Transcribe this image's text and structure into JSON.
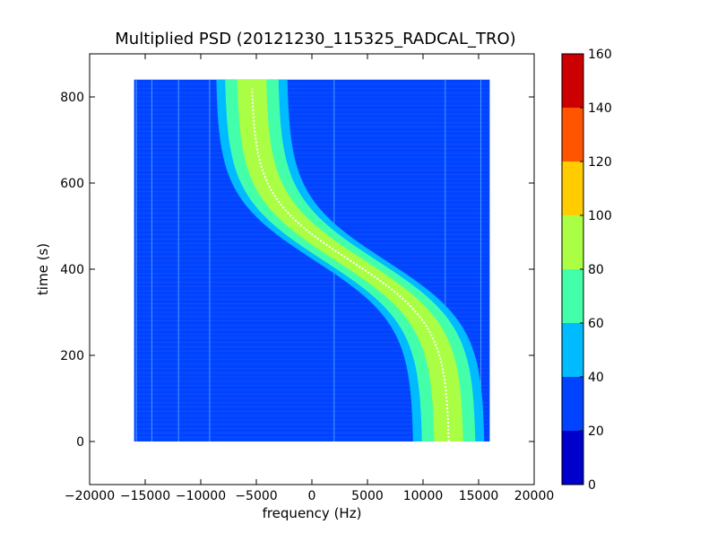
{
  "chart_data": {
    "type": "heatmap",
    "title": "Multiplied PSD (20121230_115325_RADCAL_TRO)",
    "xlabel": "frequency (Hz)",
    "ylabel": "time (s)",
    "xlim": [
      -20000,
      20000
    ],
    "ylim": [
      -100,
      900
    ],
    "xticks": [
      -20000,
      -15000,
      -10000,
      -5000,
      0,
      5000,
      10000,
      15000,
      20000
    ],
    "xtick_labels": [
      "−20000",
      "−15000",
      "−10000",
      "−5000",
      "0",
      "5000",
      "10000",
      "15000",
      "20000"
    ],
    "yticks": [
      0,
      200,
      400,
      600,
      800
    ],
    "ytick_labels": [
      "0",
      "200",
      "400",
      "600",
      "800"
    ],
    "data_extent": {
      "x": [
        -16000,
        16000
      ],
      "y": [
        0,
        840
      ]
    },
    "grid": false,
    "colorbar": {
      "levels": [
        0,
        20,
        40,
        60,
        80,
        100,
        120,
        140,
        160
      ],
      "tick_labels": [
        "0",
        "20",
        "40",
        "60",
        "80",
        "100",
        "120",
        "140",
        "160"
      ],
      "colors": [
        "#0000cd",
        "#0044ff",
        "#00bbff",
        "#44ffaa",
        "#aaff44",
        "#ffcc00",
        "#ff5500",
        "#cc0000"
      ]
    },
    "background_level_color": "#0044ff",
    "signal_track": {
      "description_color": "#ffffff",
      "center_freq_at_t0": 12300,
      "center_freq_at_t840": -5400,
      "inflection_time": 420,
      "band_halfwidth_outer": 3200,
      "band_halfwidth_mid": 2400,
      "band_halfwidth_inner": 1300
    },
    "vertical_lines_freq": [
      -15800,
      -14400,
      -12000,
      -9200,
      2000,
      12000,
      15200
    ]
  }
}
